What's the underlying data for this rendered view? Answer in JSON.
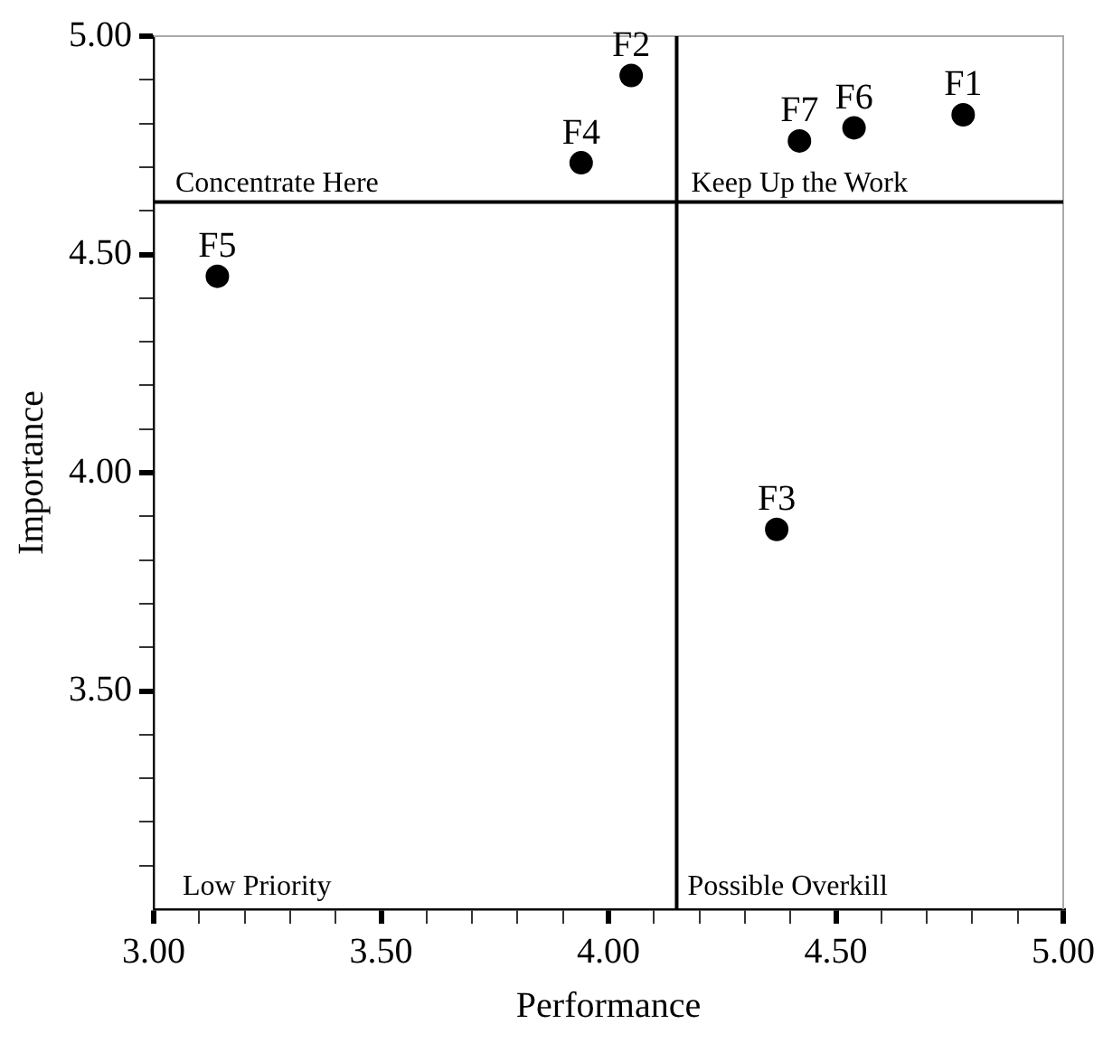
{
  "chart_data": {
    "type": "scatter",
    "xlabel": "Performance",
    "ylabel": "Importance",
    "xlim": [
      3.0,
      5.0
    ],
    "ylim": [
      3.0,
      5.0
    ],
    "xticks": [
      {
        "value": 3.0,
        "label": "3.00"
      },
      {
        "value": 3.1,
        "label": null
      },
      {
        "value": 3.2,
        "label": null
      },
      {
        "value": 3.3,
        "label": null
      },
      {
        "value": 3.4,
        "label": null
      },
      {
        "value": 3.5,
        "label": "3.50"
      },
      {
        "value": 3.6,
        "label": null
      },
      {
        "value": 3.7,
        "label": null
      },
      {
        "value": 3.8,
        "label": null
      },
      {
        "value": 3.9,
        "label": null
      },
      {
        "value": 4.0,
        "label": "4.00"
      },
      {
        "value": 4.1,
        "label": null
      },
      {
        "value": 4.2,
        "label": null
      },
      {
        "value": 4.3,
        "label": null
      },
      {
        "value": 4.4,
        "label": null
      },
      {
        "value": 4.5,
        "label": "4.50"
      },
      {
        "value": 4.6,
        "label": null
      },
      {
        "value": 4.7,
        "label": null
      },
      {
        "value": 4.8,
        "label": null
      },
      {
        "value": 4.9,
        "label": null
      },
      {
        "value": 5.0,
        "label": "5.00"
      }
    ],
    "yticks": [
      {
        "value": 3.1,
        "label": null
      },
      {
        "value": 3.2,
        "label": null
      },
      {
        "value": 3.3,
        "label": null
      },
      {
        "value": 3.4,
        "label": null
      },
      {
        "value": 3.5,
        "label": "3.50"
      },
      {
        "value": 3.6,
        "label": null
      },
      {
        "value": 3.7,
        "label": null
      },
      {
        "value": 3.8,
        "label": null
      },
      {
        "value": 3.9,
        "label": null
      },
      {
        "value": 4.0,
        "label": "4.00"
      },
      {
        "value": 4.1,
        "label": null
      },
      {
        "value": 4.2,
        "label": null
      },
      {
        "value": 4.3,
        "label": null
      },
      {
        "value": 4.4,
        "label": null
      },
      {
        "value": 4.5,
        "label": "4.50"
      },
      {
        "value": 4.6,
        "label": null
      },
      {
        "value": 4.7,
        "label": null
      },
      {
        "value": 4.8,
        "label": null
      },
      {
        "value": 4.9,
        "label": null
      },
      {
        "value": 5.0,
        "label": "5.00"
      }
    ],
    "marker": "circle",
    "legend": false,
    "series": [
      {
        "name": "F1",
        "color": "#000000",
        "x": [
          4.78
        ],
        "values": [
          4.82
        ]
      },
      {
        "name": "F2",
        "color": "#000000",
        "x": [
          4.05
        ],
        "values": [
          4.91
        ]
      },
      {
        "name": "F3",
        "color": "#000000",
        "x": [
          4.37
        ],
        "values": [
          3.87
        ]
      },
      {
        "name": "F4",
        "color": "#000000",
        "x": [
          3.94
        ],
        "values": [
          4.71
        ]
      },
      {
        "name": "F5",
        "color": "#000000",
        "x": [
          3.14
        ],
        "values": [
          4.45
        ]
      },
      {
        "name": "F6",
        "color": "#000000",
        "x": [
          4.54
        ],
        "values": [
          4.79
        ]
      },
      {
        "name": "F7",
        "color": "#000000",
        "x": [
          4.42
        ],
        "values": [
          4.76
        ]
      }
    ],
    "ref_lines": [
      {
        "axis": "x",
        "value": 4.15,
        "color": "#000000"
      },
      {
        "axis": "y",
        "value": 4.62,
        "color": "#000000"
      }
    ],
    "annotations": [
      "Concentrate Here",
      "Keep Up the Work",
      "Low Priority",
      "Possible Overkill"
    ]
  }
}
